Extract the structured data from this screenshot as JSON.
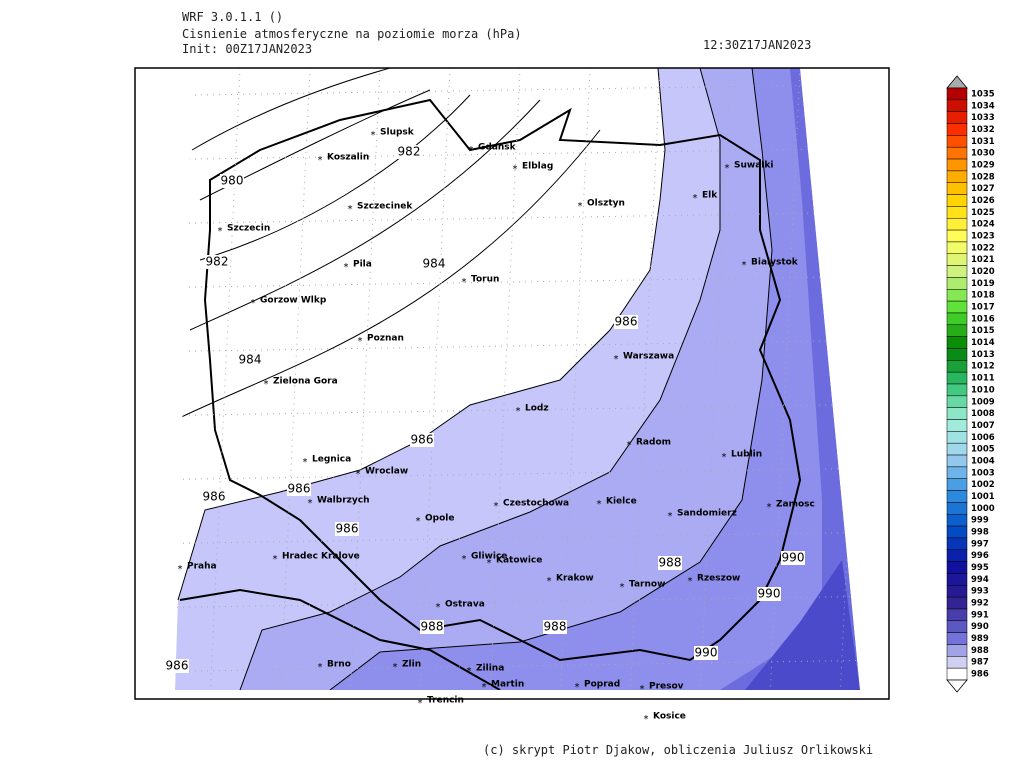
{
  "header": {
    "model": "WRF 3.0.1.1 ()",
    "title": "Cisnienie atmosferyczne na poziomie morza (hPa)",
    "init": "Init: 00Z17JAN2023",
    "valid": "12:30Z17JAN2023"
  },
  "cities": [
    "Slupsk",
    "Koszalin",
    "Gdansk",
    "Elblag",
    "Szczecinek",
    "Olsztyn",
    "Suwalki",
    "Elk",
    "Szczecin",
    "Pila",
    "Torun",
    "Bialystok",
    "Gorzow Wlkp",
    "Poznan",
    "Warszawa",
    "Zielona Gora",
    "Lodz",
    "Radom",
    "Lublin",
    "Legnica",
    "Wroclaw",
    "Walbrzych",
    "Czestochowa",
    "Kielce",
    "Sandomierz",
    "Zamosc",
    "Opole",
    "Praha",
    "Hradec Kralove",
    "Gliwice",
    "Katowice",
    "Krakow",
    "Tarnow",
    "Rzeszow",
    "Ostrava",
    "Brno",
    "Zlin",
    "Zilina",
    "Martin",
    "Poprad",
    "Presov",
    "Trencin",
    "Kosice"
  ],
  "contour_labels": [
    980,
    982,
    982,
    984,
    984,
    986,
    986,
    986,
    986,
    986,
    986,
    988,
    988,
    988,
    990,
    990,
    990
  ],
  "colorbar": {
    "labels": [
      1035,
      1034,
      1033,
      1032,
      1031,
      1030,
      1029,
      1028,
      1027,
      1026,
      1025,
      1024,
      1023,
      1022,
      1021,
      1020,
      1019,
      1018,
      1017,
      1016,
      1015,
      1014,
      1013,
      1012,
      1011,
      1010,
      1009,
      1008,
      1007,
      1006,
      1005,
      1004,
      1003,
      1002,
      1001,
      1000,
      999,
      998,
      997,
      996,
      995,
      994,
      993,
      992,
      991,
      990,
      989,
      988,
      987,
      986
    ]
  },
  "footer": "(c) skrypt Piotr Djakow, obliczenia Juliusz Orlikowski"
}
